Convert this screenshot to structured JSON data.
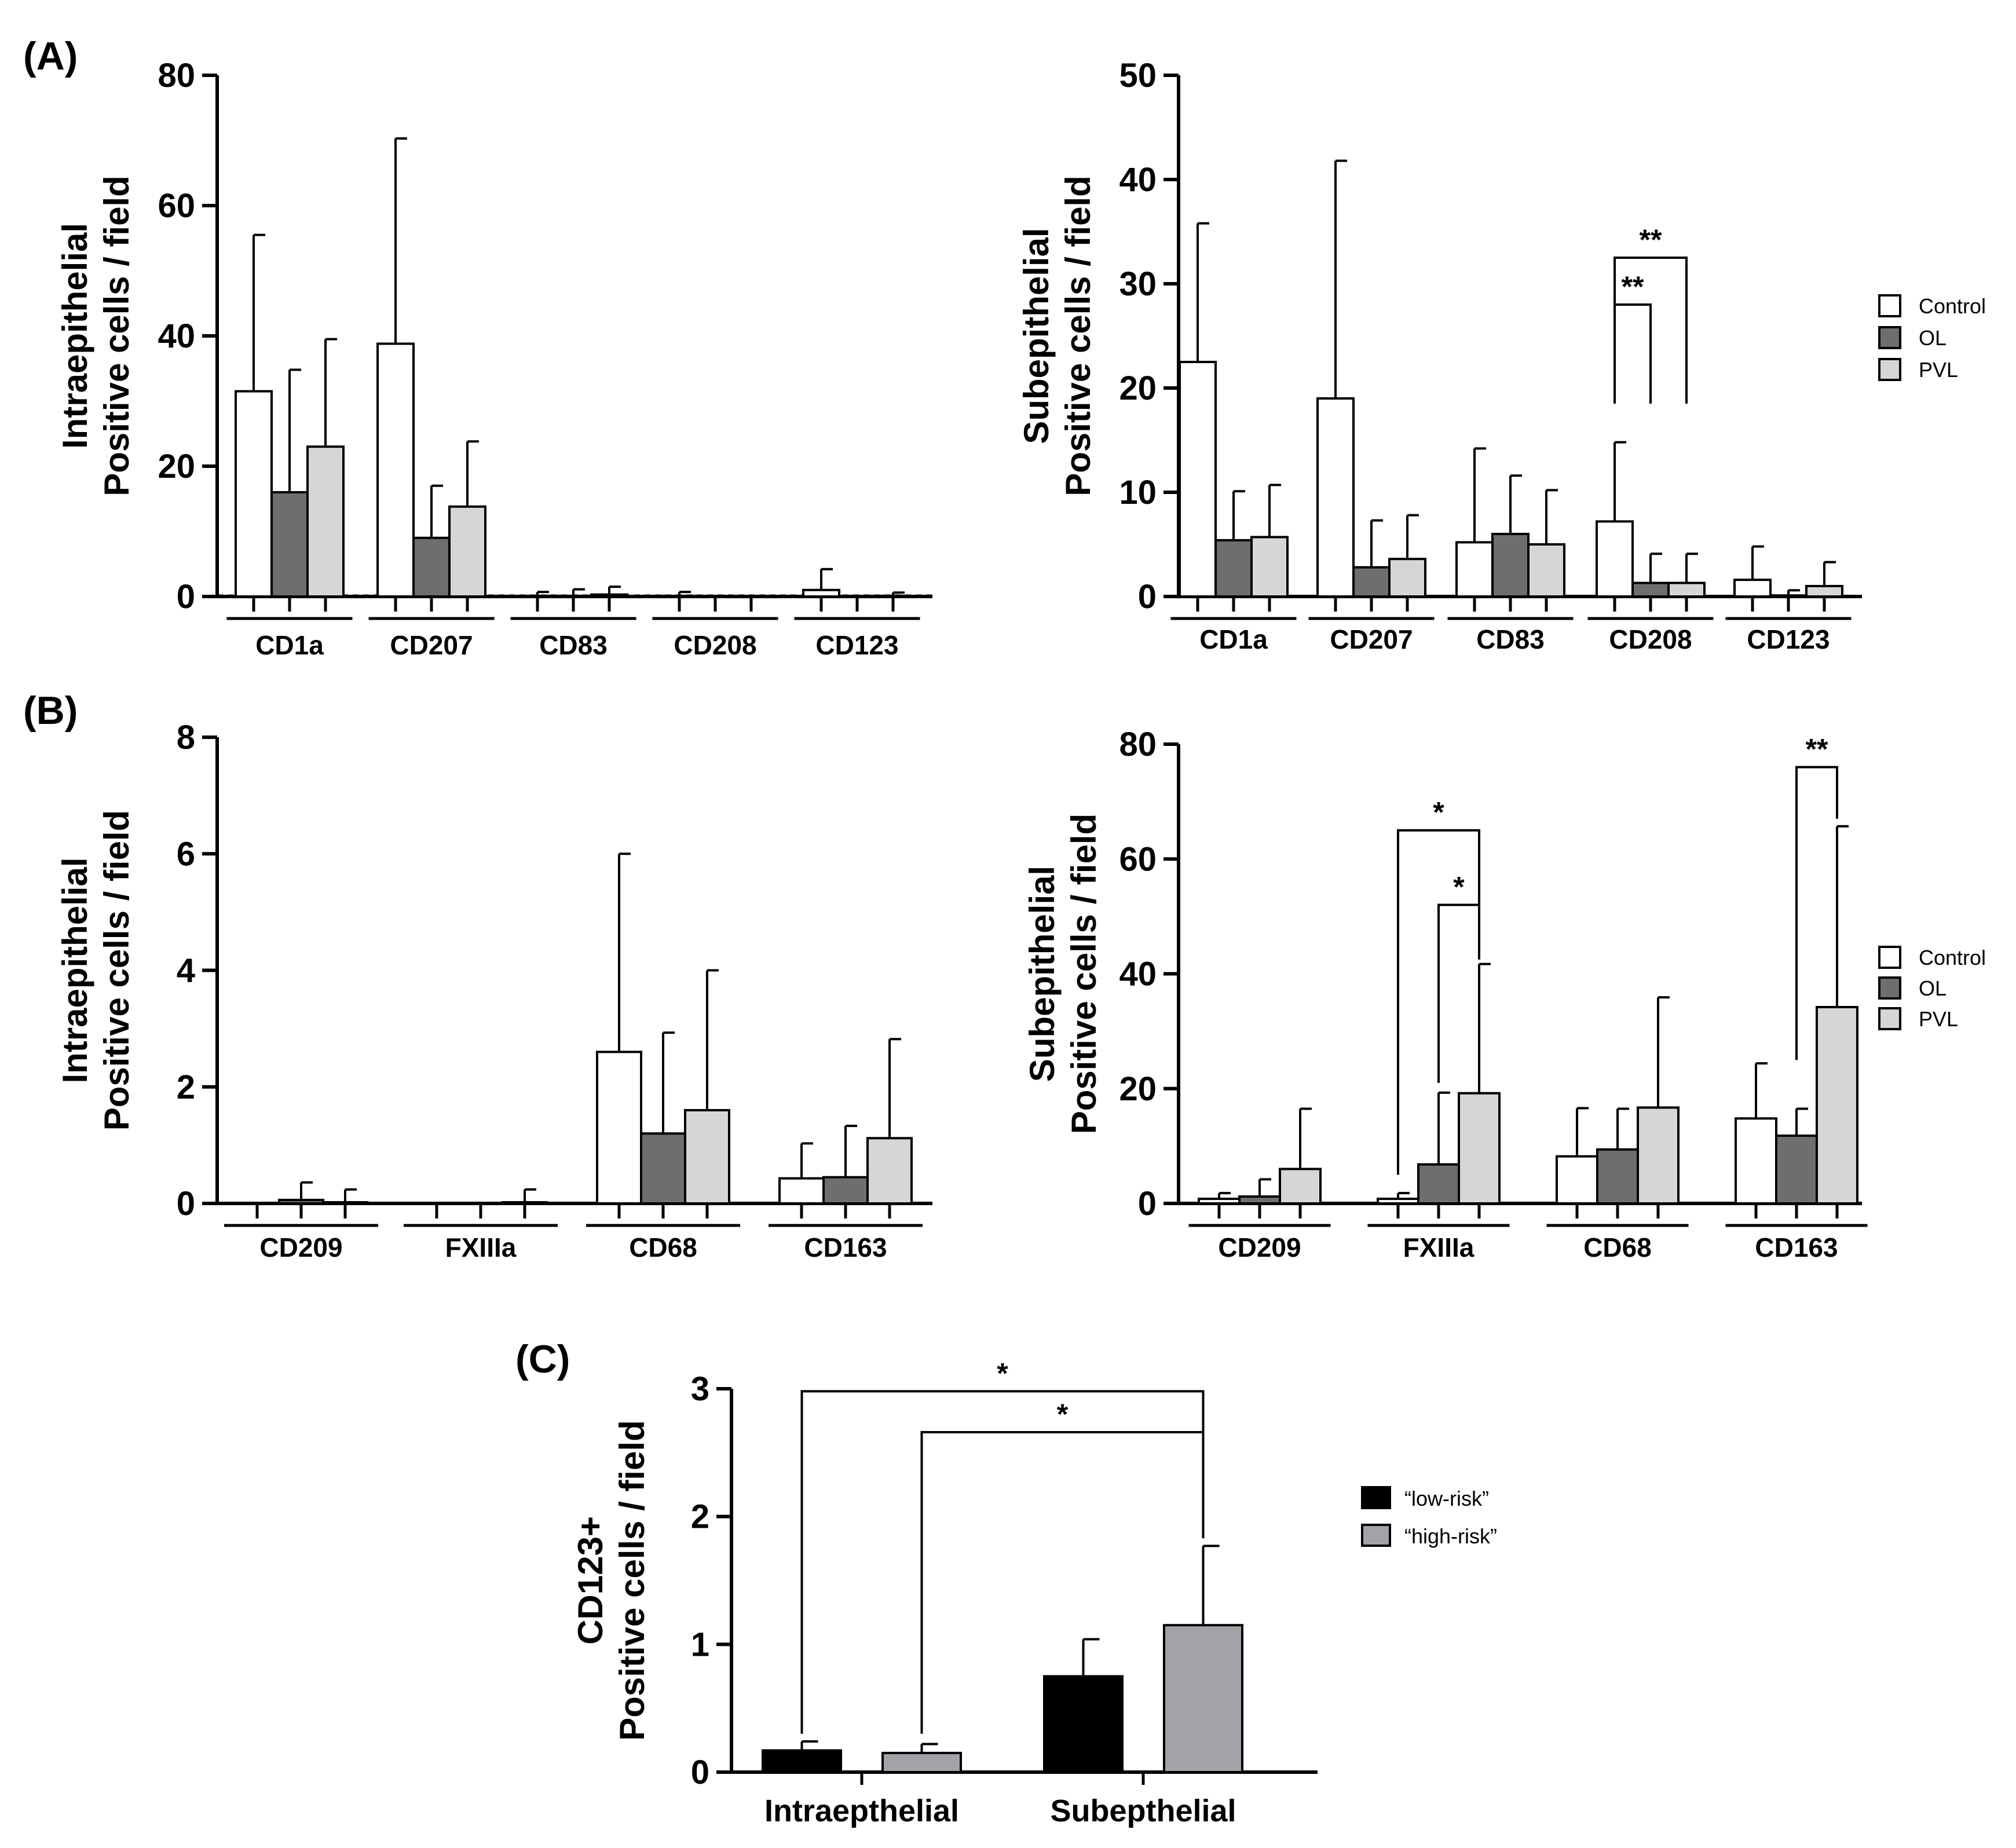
{
  "panel_labels": {
    "A": "(A)",
    "B": "(B)",
    "C": "(C)"
  },
  "legend": {
    "groups": [
      "Control",
      "OL",
      "PVL"
    ],
    "group_colors": [
      "#ffffff",
      "#6e6e6e",
      "#d6d6d6"
    ],
    "risk": [
      "“low-risk”",
      "“high-risk”"
    ],
    "risk_colors": [
      "#000000",
      "#a3a3a7"
    ]
  },
  "chart_data": [
    {
      "id": "A-left",
      "type": "bar",
      "ylabel_line1": "Intraepithelial",
      "ylabel_line2": "Positive cells / field",
      "ylim": [
        0,
        80
      ],
      "yticks": [
        "0",
        "20",
        "40",
        "60",
        "80"
      ],
      "categories": [
        "CD1a",
        "CD207",
        "CD83",
        "CD208",
        "CD123"
      ],
      "series": [
        {
          "name": "Control",
          "values": [
            31.5,
            38.8,
            0.1,
            0.1,
            1.0
          ],
          "errors": [
            24.0,
            31.5,
            0.6,
            0.6,
            3.2
          ]
        },
        {
          "name": "OL",
          "values": [
            16.0,
            9.0,
            0.1,
            0.0,
            0.0
          ],
          "errors": [
            18.8,
            8.0,
            1.0,
            0.0,
            0.0
          ]
        },
        {
          "name": "PVL",
          "values": [
            23.0,
            13.8,
            0.3,
            0.0,
            0.1
          ],
          "errors": [
            16.5,
            10.0,
            1.2,
            0.0,
            0.5
          ]
        }
      ],
      "dashed_baseline": true
    },
    {
      "id": "A-right",
      "type": "bar",
      "ylabel_line1": "Subepithelial",
      "ylabel_line2": "Positive cells / field",
      "ylim": [
        0,
        50
      ],
      "yticks": [
        "0",
        "10",
        "20",
        "30",
        "40",
        "50"
      ],
      "categories": [
        "CD1a",
        "CD207",
        "CD83",
        "CD208",
        "CD123"
      ],
      "series": [
        {
          "name": "Control",
          "values": [
            22.5,
            19.0,
            5.2,
            7.2,
            1.6
          ],
          "errors": [
            13.3,
            22.8,
            9.0,
            7.6,
            3.2
          ]
        },
        {
          "name": "OL",
          "values": [
            5.4,
            2.8,
            6.0,
            1.3,
            0.1
          ],
          "errors": [
            4.7,
            4.5,
            5.6,
            2.8,
            0.5
          ]
        },
        {
          "name": "PVL",
          "values": [
            5.7,
            3.6,
            5.0,
            1.3,
            1.0
          ],
          "errors": [
            5.0,
            4.2,
            5.2,
            2.8,
            2.3
          ]
        }
      ],
      "significance": [
        {
          "label": "**",
          "from": [
            3,
            0
          ],
          "to": [
            3,
            2
          ],
          "y": 32.5,
          "start_y": 18.5,
          "end_y": 18.5
        },
        {
          "label": "**",
          "from": [
            3,
            0
          ],
          "to": [
            3,
            1
          ],
          "y": 28.0,
          "start_y": 18.5,
          "end_y": 18.5
        }
      ]
    },
    {
      "id": "B-left",
      "type": "bar",
      "ylabel_line1": "Intraepithelial",
      "ylabel_line2": "Positive cells / field",
      "ylim": [
        0,
        8
      ],
      "yticks": [
        "0",
        "2",
        "4",
        "6",
        "8"
      ],
      "categories": [
        "CD209",
        "FXIIIa",
        "CD68",
        "CD163"
      ],
      "series": [
        {
          "name": "Control",
          "values": [
            0.0,
            0.0,
            2.6,
            0.43
          ],
          "errors": [
            0.0,
            0.0,
            3.4,
            0.6
          ]
        },
        {
          "name": "OL",
          "values": [
            0.06,
            0.0,
            1.2,
            0.45
          ],
          "errors": [
            0.3,
            0.0,
            1.73,
            0.88
          ]
        },
        {
          "name": "PVL",
          "values": [
            0.02,
            0.02,
            1.6,
            1.12
          ],
          "errors": [
            0.22,
            0.22,
            2.4,
            1.7
          ]
        }
      ]
    },
    {
      "id": "B-right",
      "type": "bar",
      "ylabel_line1": "Subepithelial",
      "ylabel_line2": "Positive cells / field",
      "ylim": [
        0,
        80
      ],
      "yticks": [
        "0",
        "20",
        "40",
        "60",
        "80"
      ],
      "categories": [
        "CD209",
        "FXIIIa",
        "CD68",
        "CD163"
      ],
      "series": [
        {
          "name": "Control",
          "values": [
            0.8,
            0.8,
            8.2,
            14.8
          ],
          "errors": [
            1.0,
            1.0,
            8.4,
            9.6
          ]
        },
        {
          "name": "OL",
          "values": [
            1.2,
            6.8,
            9.4,
            11.8
          ],
          "errors": [
            3.0,
            12.5,
            7.1,
            4.7
          ]
        },
        {
          "name": "PVL",
          "values": [
            6.0,
            19.2,
            16.7,
            34.2
          ],
          "errors": [
            10.5,
            22.5,
            19.2,
            31.5
          ]
        }
      ],
      "significance": [
        {
          "label": "*",
          "from": [
            1,
            0
          ],
          "to": [
            1,
            2
          ],
          "y": 65.0,
          "start_y": 5.0,
          "end_y": 42.5
        },
        {
          "label": "*",
          "from": [
            1,
            1
          ],
          "to": [
            1,
            2
          ],
          "y": 52.0,
          "start_y": 21.0,
          "end_y": 42.5
        },
        {
          "label": "**",
          "from": [
            3,
            1
          ],
          "to": [
            3,
            2
          ],
          "y": 76.0,
          "start_y": 25.0,
          "end_y": 67.0
        }
      ]
    },
    {
      "id": "C",
      "type": "bar",
      "ylabel_line1": "CD123+",
      "ylabel_line2": "Positive cells / field",
      "ylim": [
        0,
        3
      ],
      "yticks": [
        "0",
        "1",
        "2",
        "3"
      ],
      "categories": [
        "Intraepthelial",
        "Subepthelial"
      ],
      "series": [
        {
          "name": "low-risk",
          "values": [
            0.17,
            0.75
          ],
          "errors": [
            0.07,
            0.29
          ]
        },
        {
          "name": "high-risk",
          "values": [
            0.15,
            1.15
          ],
          "errors": [
            0.07,
            0.62
          ]
        }
      ],
      "significance": [
        {
          "label": "*",
          "from": [
            0,
            0
          ],
          "to": [
            1,
            1
          ],
          "y": 2.98,
          "start_y": 0.3,
          "end_y": 1.83
        },
        {
          "label": "*",
          "from": [
            0,
            1
          ],
          "to": [
            1,
            1
          ],
          "y": 2.66,
          "start_y": 0.3,
          "end_y": 1.83
        }
      ]
    }
  ]
}
